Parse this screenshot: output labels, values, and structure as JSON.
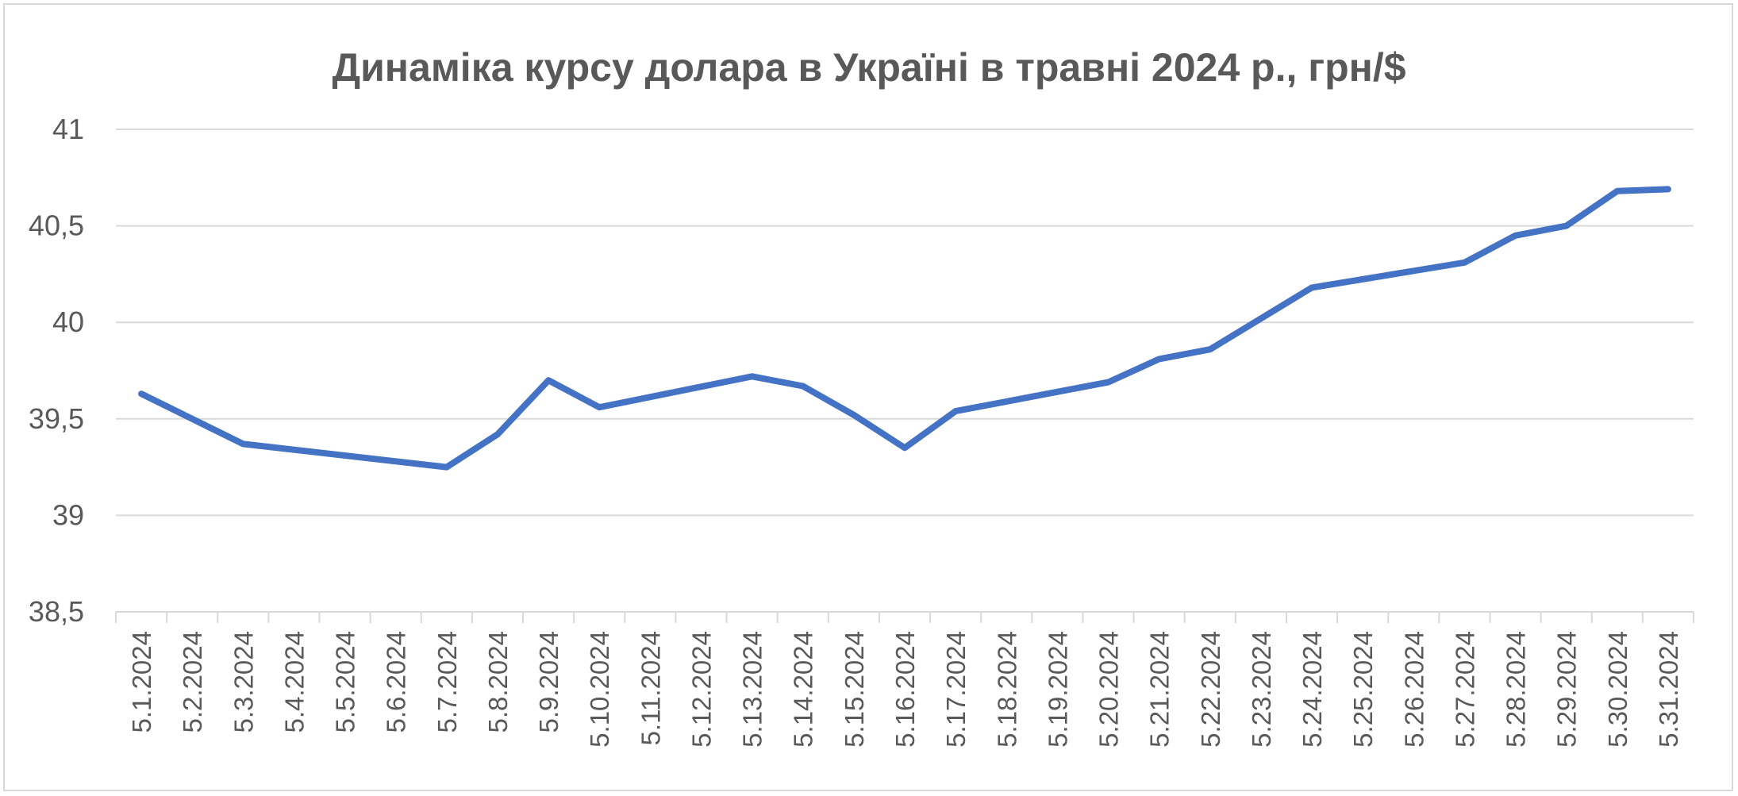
{
  "chart_data": {
    "type": "line",
    "title": "Динаміка курсу долара в Україні в травні 2024 р., грн/$",
    "xlabel": "",
    "ylabel": "",
    "ylim": [
      38.5,
      41
    ],
    "yticks": [
      "38,5",
      "39",
      "39,5",
      "40",
      "40,5",
      "41"
    ],
    "yticks_values": [
      38.5,
      39,
      39.5,
      40,
      40.5,
      41
    ],
    "grid": true,
    "legend": "none",
    "line_color": "#4472C4",
    "categories": [
      "5.1.2024",
      "5.2.2024",
      "5.3.2024",
      "5.4.2024",
      "5.5.2024",
      "5.6.2024",
      "5.7.2024",
      "5.8.2024",
      "5.9.2024",
      "5.10.2024",
      "5.11.2024",
      "5.12.2024",
      "5.13.2024",
      "5.14.2024",
      "5.15.2024",
      "5.16.2024",
      "5.17.2024",
      "5.18.2024",
      "5.19.2024",
      "5.20.2024",
      "5.21.2024",
      "5.22.2024",
      "5.23.2024",
      "5.24.2024",
      "5.25.2024",
      "5.26.2024",
      "5.27.2024",
      "5.28.2024",
      "5.29.2024",
      "5.30.2024",
      "5.31.2024"
    ],
    "series": [
      {
        "values": [
          39.63,
          39.5,
          39.37,
          null,
          null,
          null,
          39.25,
          39.42,
          39.7,
          39.56,
          null,
          null,
          39.72,
          39.67,
          39.52,
          39.35,
          39.54,
          null,
          null,
          39.69,
          39.81,
          39.86,
          40.02,
          40.18,
          null,
          null,
          40.31,
          40.45,
          40.5,
          40.68,
          40.69
        ]
      }
    ]
  }
}
